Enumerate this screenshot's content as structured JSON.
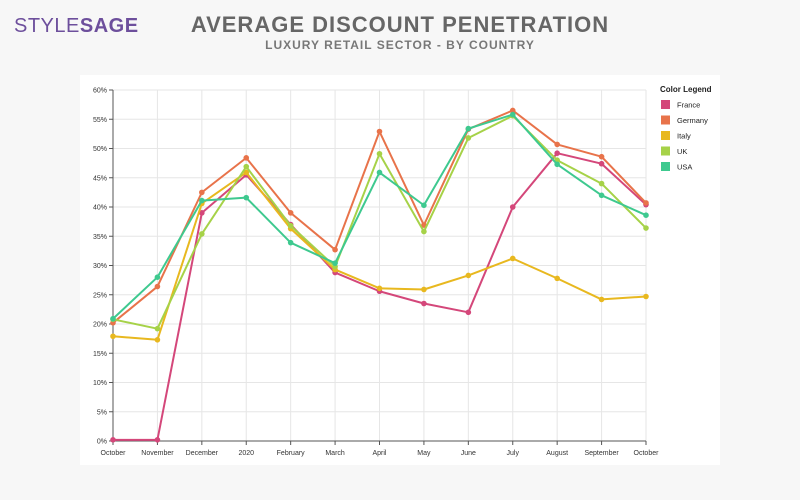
{
  "brand": {
    "part1": "STYLE",
    "part2": "SAGE",
    "color": "#6d4f9c"
  },
  "chart_data": {
    "type": "line",
    "title": "AVERAGE DISCOUNT PENETRATION",
    "subtitle": "LUXURY RETAIL SECTOR - BY COUNTRY",
    "categories": [
      "October",
      "November",
      "December",
      "2020",
      "February",
      "March",
      "April",
      "May",
      "June",
      "July",
      "August",
      "September",
      "October"
    ],
    "ylim": [
      0,
      60
    ],
    "yticks": [
      0,
      5,
      10,
      15,
      20,
      25,
      30,
      35,
      40,
      45,
      50,
      55,
      60
    ],
    "ytick_suffix": "%",
    "grid": true,
    "legend_title": "Color Legend",
    "legend_position": "top-right",
    "series": [
      {
        "name": "France",
        "color": "#d4477a",
        "values": [
          0.2,
          0.2,
          39.0,
          45.5,
          37.0,
          28.8,
          25.6,
          23.5,
          22.0,
          40.0,
          49.2,
          47.4,
          40.4
        ]
      },
      {
        "name": "Germany",
        "color": "#e8734a",
        "values": [
          20.2,
          26.4,
          42.5,
          48.4,
          39.0,
          32.7,
          52.9,
          36.9,
          53.3,
          56.5,
          50.7,
          48.6,
          40.7
        ]
      },
      {
        "name": "Italy",
        "color": "#e8b81f",
        "values": [
          17.9,
          17.3,
          40.6,
          45.9,
          36.3,
          29.3,
          26.1,
          25.9,
          28.3,
          31.2,
          27.8,
          24.2,
          24.7
        ]
      },
      {
        "name": "UK",
        "color": "#a6d248",
        "values": [
          20.8,
          19.2,
          35.4,
          46.9,
          36.8,
          29.8,
          49.1,
          35.8,
          51.8,
          55.6,
          48.0,
          44.0,
          36.4
        ]
      },
      {
        "name": "USA",
        "color": "#3ec98f",
        "values": [
          20.9,
          28.0,
          41.1,
          41.6,
          33.9,
          30.4,
          45.9,
          40.3,
          53.4,
          55.8,
          47.3,
          42.0,
          38.6
        ]
      }
    ]
  }
}
